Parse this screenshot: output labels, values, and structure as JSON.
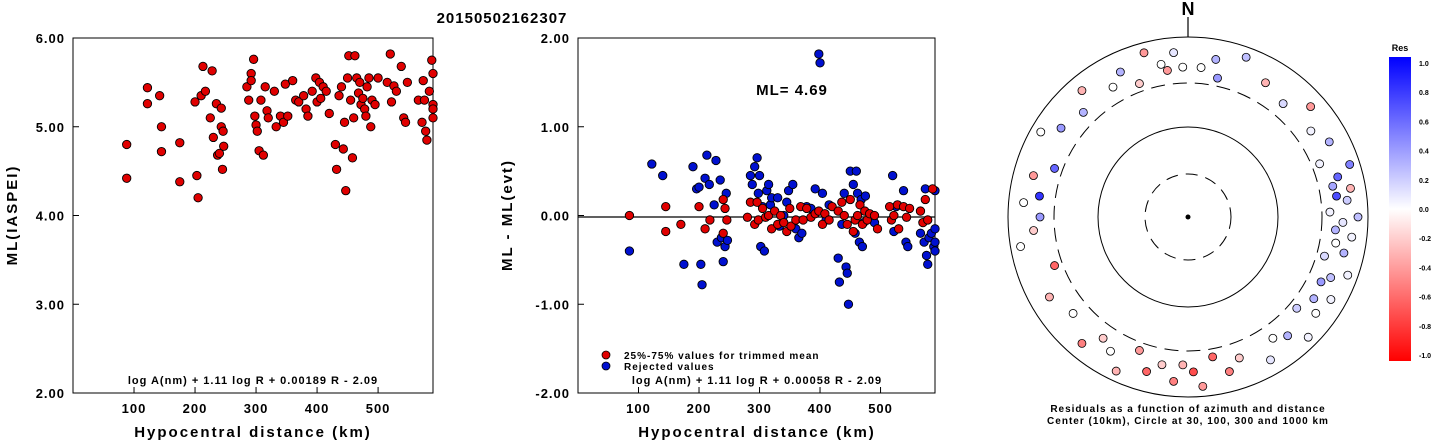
{
  "event_title": "20150502162307",
  "chart_data": [
    {
      "type": "scatter",
      "name_key": "ml-vs-distance",
      "xlabel": "Hypocentral distance (km)",
      "ylabel": "ML(IASPEI)",
      "xlim": [
        0,
        590
      ],
      "ylim": [
        2.0,
        6.0
      ],
      "xticks": [
        "100",
        "200",
        "300",
        "400",
        "500"
      ],
      "yticks": [
        "2.00",
        "3.00",
        "4.00",
        "5.00",
        "6.00"
      ],
      "formula": "log A(nm) + 1.11 log R + 0.00189 R - 2.09",
      "color": "#e00000",
      "points": [
        [
          88,
          4.8
        ],
        [
          88,
          4.42
        ],
        [
          122,
          5.44
        ],
        [
          122,
          5.26
        ],
        [
          142,
          5.35
        ],
        [
          145,
          5.0
        ],
        [
          145,
          4.72
        ],
        [
          175,
          4.82
        ],
        [
          175,
          4.38
        ],
        [
          200,
          5.28
        ],
        [
          203,
          4.45
        ],
        [
          205,
          4.2
        ],
        [
          210,
          5.35
        ],
        [
          213,
          5.68
        ],
        [
          217,
          5.4
        ],
        [
          225,
          5.1
        ],
        [
          228,
          5.63
        ],
        [
          230,
          4.88
        ],
        [
          235,
          5.26
        ],
        [
          237,
          4.68
        ],
        [
          240,
          4.7
        ],
        [
          243,
          5.0
        ],
        [
          243,
          5.21
        ],
        [
          245,
          4.52
        ],
        [
          247,
          4.78
        ],
        [
          246,
          4.95
        ],
        [
          285,
          5.45
        ],
        [
          288,
          5.3
        ],
        [
          292,
          5.6
        ],
        [
          292,
          5.52
        ],
        [
          296,
          5.76
        ],
        [
          298,
          5.12
        ],
        [
          300,
          5.02
        ],
        [
          302,
          4.95
        ],
        [
          305,
          4.73
        ],
        [
          308,
          5.3
        ],
        [
          312,
          4.68
        ],
        [
          315,
          5.45
        ],
        [
          318,
          5.18
        ],
        [
          320,
          5.1
        ],
        [
          330,
          5.4
        ],
        [
          333,
          5.0
        ],
        [
          340,
          5.12
        ],
        [
          345,
          5.05
        ],
        [
          348,
          5.48
        ],
        [
          352,
          5.12
        ],
        [
          360,
          5.52
        ],
        [
          365,
          5.3
        ],
        [
          370,
          5.28
        ],
        [
          378,
          5.35
        ],
        [
          382,
          5.2
        ],
        [
          385,
          5.12
        ],
        [
          392,
          5.4
        ],
        [
          398,
          5.55
        ],
        [
          400,
          5.28
        ],
        [
          404,
          5.5
        ],
        [
          406,
          5.32
        ],
        [
          410,
          5.45
        ],
        [
          415,
          5.4
        ],
        [
          420,
          5.15
        ],
        [
          430,
          4.8
        ],
        [
          432,
          4.52
        ],
        [
          436,
          5.35
        ],
        [
          440,
          5.45
        ],
        [
          443,
          4.75
        ],
        [
          445,
          5.05
        ],
        [
          447,
          4.28
        ],
        [
          450,
          5.55
        ],
        [
          452,
          5.8
        ],
        [
          455,
          5.3
        ],
        [
          458,
          4.65
        ],
        [
          460,
          5.1
        ],
        [
          462,
          5.8
        ],
        [
          465,
          5.55
        ],
        [
          468,
          5.38
        ],
        [
          470,
          5.5
        ],
        [
          472,
          5.25
        ],
        [
          475,
          5.32
        ],
        [
          478,
          5.2
        ],
        [
          480,
          5.12
        ],
        [
          482,
          5.45
        ],
        [
          485,
          5.55
        ],
        [
          488,
          5.0
        ],
        [
          490,
          5.3
        ],
        [
          495,
          5.25
        ],
        [
          500,
          5.55
        ],
        [
          515,
          5.5
        ],
        [
          520,
          5.82
        ],
        [
          522,
          5.28
        ],
        [
          526,
          5.46
        ],
        [
          530,
          5.4
        ],
        [
          538,
          5.68
        ],
        [
          542,
          5.1
        ],
        [
          545,
          5.05
        ],
        [
          548,
          5.5
        ],
        [
          566,
          5.3
        ],
        [
          572,
          5.05
        ],
        [
          574,
          5.52
        ],
        [
          576,
          5.3
        ],
        [
          578,
          4.95
        ],
        [
          580,
          4.85
        ],
        [
          584,
          5.4
        ],
        [
          588,
          5.75
        ],
        [
          590,
          5.25
        ],
        [
          590,
          5.1
        ],
        [
          590,
          5.2
        ],
        [
          590,
          5.6
        ]
      ]
    },
    {
      "type": "scatter",
      "name_key": "residual-vs-distance",
      "xlabel": "Hypocentral distance (km)",
      "ylabel": "ML - ML(evt)",
      "xlim": [
        0,
        590
      ],
      "ylim": [
        -2.0,
        2.0
      ],
      "xticks": [
        "100",
        "200",
        "300",
        "400",
        "500"
      ],
      "yticks": [
        "-2.00",
        "-1.00",
        "0.00",
        "1.00",
        "2.00"
      ],
      "annotation": "ML= 4.69",
      "formula": "log A(nm) + 1.11 log R + 0.00058 R - 2.09",
      "legend": [
        "25%-75% values for trimmed mean",
        "Rejected values"
      ],
      "colors": {
        "trimmed": "#e00000",
        "rejected": "#0010d0"
      },
      "trimmed": [
        [
          85,
          0.0
        ],
        [
          145,
          0.1
        ],
        [
          145,
          -0.18
        ],
        [
          170,
          -0.1
        ],
        [
          200,
          0.1
        ],
        [
          210,
          -0.15
        ],
        [
          218,
          -0.05
        ],
        [
          240,
          0.18
        ],
        [
          240,
          -0.2
        ],
        [
          243,
          0.08
        ],
        [
          246,
          -0.05
        ],
        [
          280,
          -0.02
        ],
        [
          285,
          0.15
        ],
        [
          292,
          -0.1
        ],
        [
          296,
          0.15
        ],
        [
          298,
          -0.05
        ],
        [
          305,
          0.08
        ],
        [
          310,
          -0.02
        ],
        [
          315,
          0.0
        ],
        [
          320,
          -0.15
        ],
        [
          325,
          0.05
        ],
        [
          330,
          -0.1
        ],
        [
          335,
          0.0
        ],
        [
          340,
          -0.08
        ],
        [
          345,
          -0.18
        ],
        [
          350,
          0.08
        ],
        [
          352,
          -0.12
        ],
        [
          360,
          -0.05
        ],
        [
          368,
          0.1
        ],
        [
          372,
          -0.05
        ],
        [
          378,
          0.08
        ],
        [
          385,
          -0.02
        ],
        [
          392,
          0.02
        ],
        [
          398,
          0.05
        ],
        [
          404,
          -0.1
        ],
        [
          408,
          0.02
        ],
        [
          415,
          -0.05
        ],
        [
          420,
          0.1
        ],
        [
          430,
          0.05
        ],
        [
          436,
          0.15
        ],
        [
          440,
          0.0
        ],
        [
          445,
          -0.1
        ],
        [
          450,
          0.18
        ],
        [
          455,
          -0.18
        ],
        [
          458,
          -0.05
        ],
        [
          462,
          0.0
        ],
        [
          466,
          0.12
        ],
        [
          470,
          -0.1
        ],
        [
          474,
          0.05
        ],
        [
          478,
          -0.05
        ],
        [
          482,
          0.02
        ],
        [
          490,
          0.0
        ],
        [
          495,
          -0.15
        ],
        [
          515,
          0.1
        ],
        [
          518,
          -0.05
        ],
        [
          522,
          0.0
        ],
        [
          528,
          0.12
        ],
        [
          530,
          -0.15
        ],
        [
          538,
          0.1
        ],
        [
          543,
          -0.02
        ],
        [
          548,
          0.08
        ],
        [
          566,
          0.05
        ],
        [
          570,
          -0.08
        ],
        [
          574,
          0.18
        ],
        [
          578,
          -0.05
        ],
        [
          586,
          0.3
        ]
      ],
      "rejected": [
        [
          85,
          -0.4
        ],
        [
          122,
          0.58
        ],
        [
          140,
          0.45
        ],
        [
          175,
          -0.55
        ],
        [
          190,
          0.55
        ],
        [
          196,
          0.3
        ],
        [
          200,
          0.32
        ],
        [
          203,
          -0.55
        ],
        [
          205,
          -0.78
        ],
        [
          210,
          0.42
        ],
        [
          213,
          0.68
        ],
        [
          217,
          0.35
        ],
        [
          225,
          0.12
        ],
        [
          228,
          0.62
        ],
        [
          230,
          -0.3
        ],
        [
          235,
          0.4
        ],
        [
          237,
          -0.25
        ],
        [
          240,
          -0.52
        ],
        [
          243,
          -0.35
        ],
        [
          245,
          0.25
        ],
        [
          247,
          -0.28
        ],
        [
          285,
          0.45
        ],
        [
          288,
          0.35
        ],
        [
          292,
          0.55
        ],
        [
          296,
          0.65
        ],
        [
          298,
          0.25
        ],
        [
          300,
          0.45
        ],
        [
          302,
          -0.35
        ],
        [
          305,
          0.1
        ],
        [
          308,
          -0.4
        ],
        [
          312,
          0.28
        ],
        [
          315,
          0.35
        ],
        [
          318,
          0.12
        ],
        [
          320,
          0.2
        ],
        [
          330,
          0.2
        ],
        [
          333,
          -0.12
        ],
        [
          340,
          0.0
        ],
        [
          345,
          0.15
        ],
        [
          348,
          0.28
        ],
        [
          355,
          0.35
        ],
        [
          360,
          -0.15
        ],
        [
          365,
          -0.25
        ],
        [
          370,
          -0.2
        ],
        [
          378,
          0.1
        ],
        [
          385,
          0.08
        ],
        [
          392,
          0.3
        ],
        [
          398,
          1.82
        ],
        [
          400,
          1.72
        ],
        [
          404,
          0.25
        ],
        [
          410,
          -0.05
        ],
        [
          415,
          0.12
        ],
        [
          430,
          -0.48
        ],
        [
          432,
          -0.75
        ],
        [
          436,
          -0.1
        ],
        [
          440,
          0.25
        ],
        [
          443,
          -0.58
        ],
        [
          445,
          -0.65
        ],
        [
          447,
          -1.0
        ],
        [
          450,
          0.5
        ],
        [
          455,
          0.35
        ],
        [
          458,
          -0.2
        ],
        [
          460,
          0.5
        ],
        [
          462,
          0.25
        ],
        [
          465,
          -0.3
        ],
        [
          468,
          0.18
        ],
        [
          470,
          -0.35
        ],
        [
          472,
          -0.08
        ],
        [
          475,
          0.22
        ],
        [
          490,
          -0.08
        ],
        [
          520,
          0.45
        ],
        [
          522,
          -0.18
        ],
        [
          526,
          0.1
        ],
        [
          538,
          0.28
        ],
        [
          542,
          -0.3
        ],
        [
          545,
          -0.35
        ],
        [
          566,
          -0.2
        ],
        [
          572,
          -0.3
        ],
        [
          574,
          0.3
        ],
        [
          576,
          -0.45
        ],
        [
          578,
          -0.55
        ],
        [
          580,
          -0.25
        ],
        [
          584,
          -0.2
        ],
        [
          588,
          -0.35
        ],
        [
          590,
          0.28
        ],
        [
          590,
          -0.3
        ],
        [
          590,
          -0.15
        ],
        [
          590,
          -0.4
        ]
      ]
    },
    {
      "type": "scatter",
      "name_key": "polar-residuals",
      "north_label": "N",
      "caption_line1": "Residuals as a function of azimuth and distance",
      "caption_line2": "Center (10km), Circle at 30, 100, 300 and 1000 km",
      "colorbar_title": "Res",
      "colorbar_ticks": [
        "1.0",
        "0.8",
        "0.6",
        "0.4",
        "0.2",
        "0.0",
        "-0.2",
        "-0.4",
        "-0.6",
        "-0.8",
        "-1.0"
      ],
      "colors": {
        "positive": "#0000ff",
        "neutral": "#ffffff",
        "negative": "#ff0000"
      },
      "points": [
        [
          5,
          0.0
        ],
        [
          10,
          0.3
        ],
        [
          12,
          0.4
        ],
        [
          20,
          0.25
        ],
        [
          30,
          -0.3
        ],
        [
          40,
          0.15
        ],
        [
          48,
          -0.4
        ],
        [
          55,
          0.05
        ],
        [
          62,
          0.3
        ],
        [
          68,
          0.05
        ],
        [
          72,
          0.5
        ],
        [
          75,
          0.6
        ],
        [
          78,
          0.35
        ],
        [
          80,
          -0.3
        ],
        [
          82,
          0.7
        ],
        [
          84,
          0.2
        ],
        [
          88,
          0.05
        ],
        [
          90,
          0.25
        ],
        [
          92,
          0.1
        ],
        [
          95,
          0.3
        ],
        [
          97,
          0.05
        ],
        [
          100,
          0.0
        ],
        [
          103,
          0.3
        ],
        [
          106,
          0.15
        ],
        [
          110,
          0.05
        ],
        [
          113,
          0.25
        ],
        [
          116,
          0.4
        ],
        [
          120,
          0.05
        ],
        [
          123,
          0.3
        ],
        [
          127,
          0.0
        ],
        [
          130,
          0.2
        ],
        [
          135,
          0.05
        ],
        [
          140,
          0.3
        ],
        [
          145,
          0.0
        ],
        [
          150,
          0.1
        ],
        [
          160,
          -0.2
        ],
        [
          165,
          -0.5
        ],
        [
          170,
          -0.6
        ],
        [
          175,
          -0.4
        ],
        [
          178,
          -0.7
        ],
        [
          182,
          -0.3
        ],
        [
          185,
          -0.5
        ],
        [
          190,
          -0.2
        ],
        [
          195,
          -0.6
        ],
        [
          200,
          -0.4
        ],
        [
          205,
          -0.3
        ],
        [
          210,
          0.0
        ],
        [
          215,
          -0.2
        ],
        [
          220,
          -0.5
        ],
        [
          230,
          0.0
        ],
        [
          240,
          -0.3
        ],
        [
          250,
          -0.6
        ],
        [
          260,
          0.0
        ],
        [
          265,
          -0.2
        ],
        [
          270,
          0.4
        ],
        [
          275,
          0.0
        ],
        [
          278,
          0.8
        ],
        [
          285,
          -0.4
        ],
        [
          290,
          0.6
        ],
        [
          300,
          0.0
        ],
        [
          305,
          0.4
        ],
        [
          315,
          0.3
        ],
        [
          320,
          -0.3
        ],
        [
          330,
          0.0
        ],
        [
          335,
          0.3
        ],
        [
          340,
          -0.2
        ],
        [
          345,
          -0.4
        ],
        [
          350,
          0.0
        ],
        [
          352,
          -0.4
        ],
        [
          355,
          0.1
        ],
        [
          358,
          0.0
        ]
      ]
    }
  ]
}
